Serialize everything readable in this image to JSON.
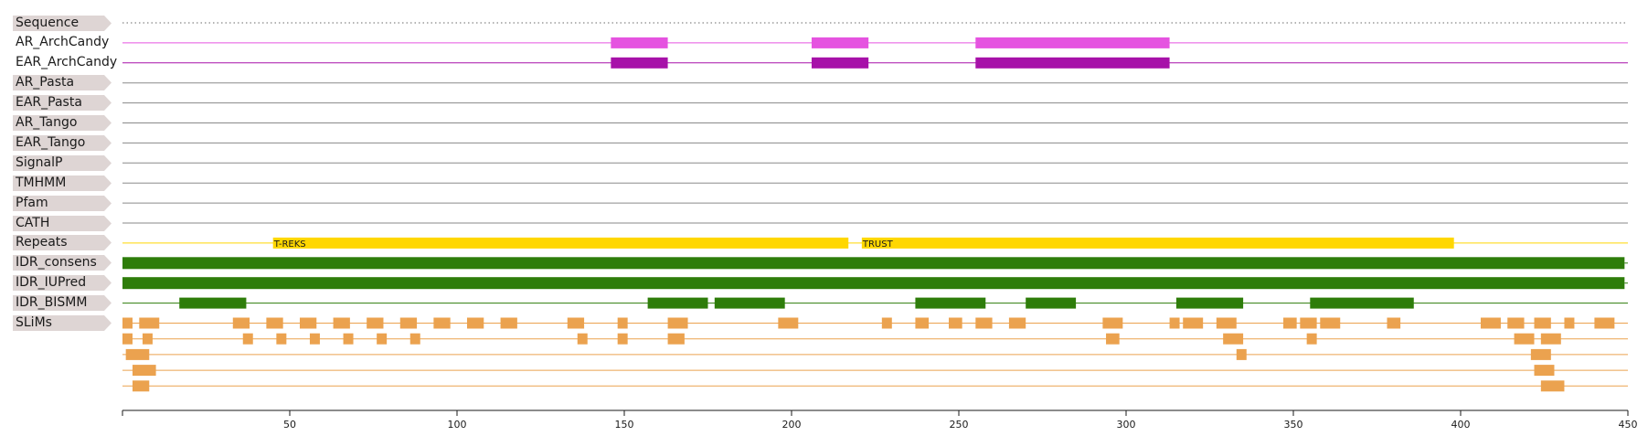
{
  "axis": {
    "min": 0,
    "max": 450,
    "ticks": [
      50,
      100,
      150,
      200,
      250,
      300,
      350,
      400,
      450
    ]
  },
  "colors": {
    "label_bg": "#ded5d4",
    "axis": "#1a1a1a",
    "line_gray": "#8a8a8a",
    "archcandy": "#e553e0",
    "ear_archcandy": "#a711a9",
    "repeats": "#ffd700",
    "idr": "#2e7d0a",
    "slims": "#eba24f",
    "sequence": "#888888"
  },
  "tracks": [
    {
      "id": "sequence",
      "label": "Sequence",
      "style": "dotted"
    },
    {
      "id": "ar-archcandy",
      "label": "AR_ArchCandy",
      "style": "line-feat",
      "color_key": "archcandy",
      "tag": false,
      "features": [
        [
          146,
          163
        ],
        [
          206,
          223
        ],
        [
          255,
          313
        ]
      ]
    },
    {
      "id": "ear-archcandy",
      "label": "EAR_ArchCandy",
      "style": "line-feat",
      "color_key": "ear_archcandy",
      "tag": false,
      "features": [
        [
          146,
          163
        ],
        [
          206,
          223
        ],
        [
          255,
          313
        ]
      ]
    },
    {
      "id": "ar-pasta",
      "label": "AR_Pasta",
      "style": "empty"
    },
    {
      "id": "ear-pasta",
      "label": "EAR_Pasta",
      "style": "empty"
    },
    {
      "id": "ar-tango",
      "label": "AR_Tango",
      "style": "empty"
    },
    {
      "id": "ear-tango",
      "label": "EAR_Tango",
      "style": "empty"
    },
    {
      "id": "signalp",
      "label": "SignalP",
      "style": "empty"
    },
    {
      "id": "tmhmm",
      "label": "TMHMM",
      "style": "empty"
    },
    {
      "id": "pfam",
      "label": "Pfam",
      "style": "empty"
    },
    {
      "id": "cath",
      "label": "CATH",
      "style": "empty"
    },
    {
      "id": "repeats",
      "label": "Repeats",
      "style": "repeats",
      "color_key": "repeats",
      "features": [
        {
          "start": 45,
          "end": 217,
          "name": "T-REKS"
        },
        {
          "start": 221,
          "end": 398,
          "name": "TRUST"
        }
      ]
    },
    {
      "id": "idr-consens",
      "label": "IDR_consens",
      "style": "full",
      "color_key": "idr",
      "features": [
        [
          0,
          449
        ]
      ]
    },
    {
      "id": "idr-iupred",
      "label": "IDR_IUPred",
      "style": "full",
      "color_key": "idr",
      "features": [
        [
          0,
          449
        ]
      ]
    },
    {
      "id": "idr-bismm",
      "label": "IDR_BISMM",
      "style": "line-feat",
      "color_key": "idr",
      "features": [
        [
          17,
          37
        ],
        [
          157,
          175
        ],
        [
          177,
          198
        ],
        [
          237,
          258
        ],
        [
          270,
          285
        ],
        [
          315,
          335
        ],
        [
          355,
          386
        ]
      ]
    },
    {
      "id": "slims",
      "label": "SLiMs",
      "style": "slims",
      "color_key": "slims",
      "rows": [
        [
          [
            0,
            3
          ],
          [
            5,
            11
          ],
          [
            33,
            38
          ],
          [
            43,
            48
          ],
          [
            53,
            58
          ],
          [
            63,
            68
          ],
          [
            73,
            78
          ],
          [
            83,
            88
          ],
          [
            93,
            98
          ],
          [
            103,
            108
          ],
          [
            113,
            118
          ],
          [
            133,
            138
          ],
          [
            148,
            151
          ],
          [
            163,
            169
          ],
          [
            196,
            202
          ],
          [
            227,
            230
          ],
          [
            237,
            241
          ],
          [
            247,
            251
          ],
          [
            255,
            260
          ],
          [
            265,
            270
          ],
          [
            293,
            299
          ],
          [
            313,
            316
          ],
          [
            317,
            323
          ],
          [
            327,
            333
          ],
          [
            347,
            351
          ],
          [
            352,
            357
          ],
          [
            358,
            364
          ],
          [
            378,
            382
          ],
          [
            406,
            412
          ],
          [
            414,
            419
          ],
          [
            422,
            427
          ],
          [
            431,
            434
          ],
          [
            440,
            446
          ]
        ],
        [
          [
            0,
            3
          ],
          [
            6,
            9
          ],
          [
            36,
            39
          ],
          [
            46,
            49
          ],
          [
            56,
            59
          ],
          [
            66,
            69
          ],
          [
            76,
            79
          ],
          [
            86,
            89
          ],
          [
            136,
            139
          ],
          [
            148,
            151
          ],
          [
            163,
            168
          ],
          [
            294,
            298
          ],
          [
            329,
            335
          ],
          [
            354,
            357
          ],
          [
            416,
            422
          ],
          [
            424,
            430
          ]
        ],
        [
          [
            1,
            8
          ],
          [
            333,
            336
          ],
          [
            421,
            427
          ]
        ],
        [
          [
            3,
            10
          ],
          [
            422,
            428
          ]
        ],
        [
          [
            3,
            8
          ],
          [
            424,
            431
          ]
        ]
      ]
    }
  ]
}
